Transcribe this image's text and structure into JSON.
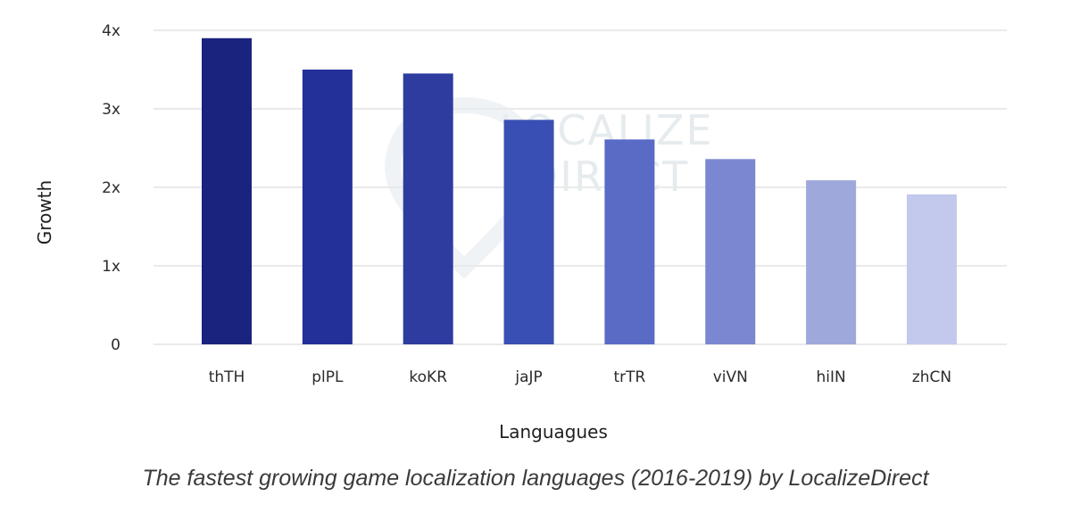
{
  "chart_data": {
    "type": "bar",
    "categories": [
      "thTH",
      "plPL",
      "koKR",
      "jaJP",
      "trTR",
      "viVN",
      "hiIN",
      "zhCN"
    ],
    "values": [
      3.9,
      3.5,
      3.45,
      2.86,
      2.61,
      2.36,
      2.09,
      1.91
    ],
    "ylabel": "Growth",
    "xlabel": "Languagues",
    "ylim": [
      0,
      4
    ],
    "yticks": [
      {
        "value": 0,
        "label": "0"
      },
      {
        "value": 1,
        "label": "1x"
      },
      {
        "value": 2,
        "label": "2x"
      },
      {
        "value": 3,
        "label": "3x"
      },
      {
        "value": 4,
        "label": "4x"
      }
    ],
    "grid": true,
    "bar_colors": [
      "#1a237e",
      "#23309a",
      "#2e3c9f",
      "#3a4fb4",
      "#5a6bc6",
      "#7b87d0",
      "#9fa8db",
      "#c3c9ec"
    ]
  },
  "caption": "The fastest growing game localization languages (2016-2019) by LocalizeDirect",
  "watermark": {
    "line1": "LOCALIZE",
    "line2": "DIRECT",
    "icon": "location-pin-icon"
  }
}
